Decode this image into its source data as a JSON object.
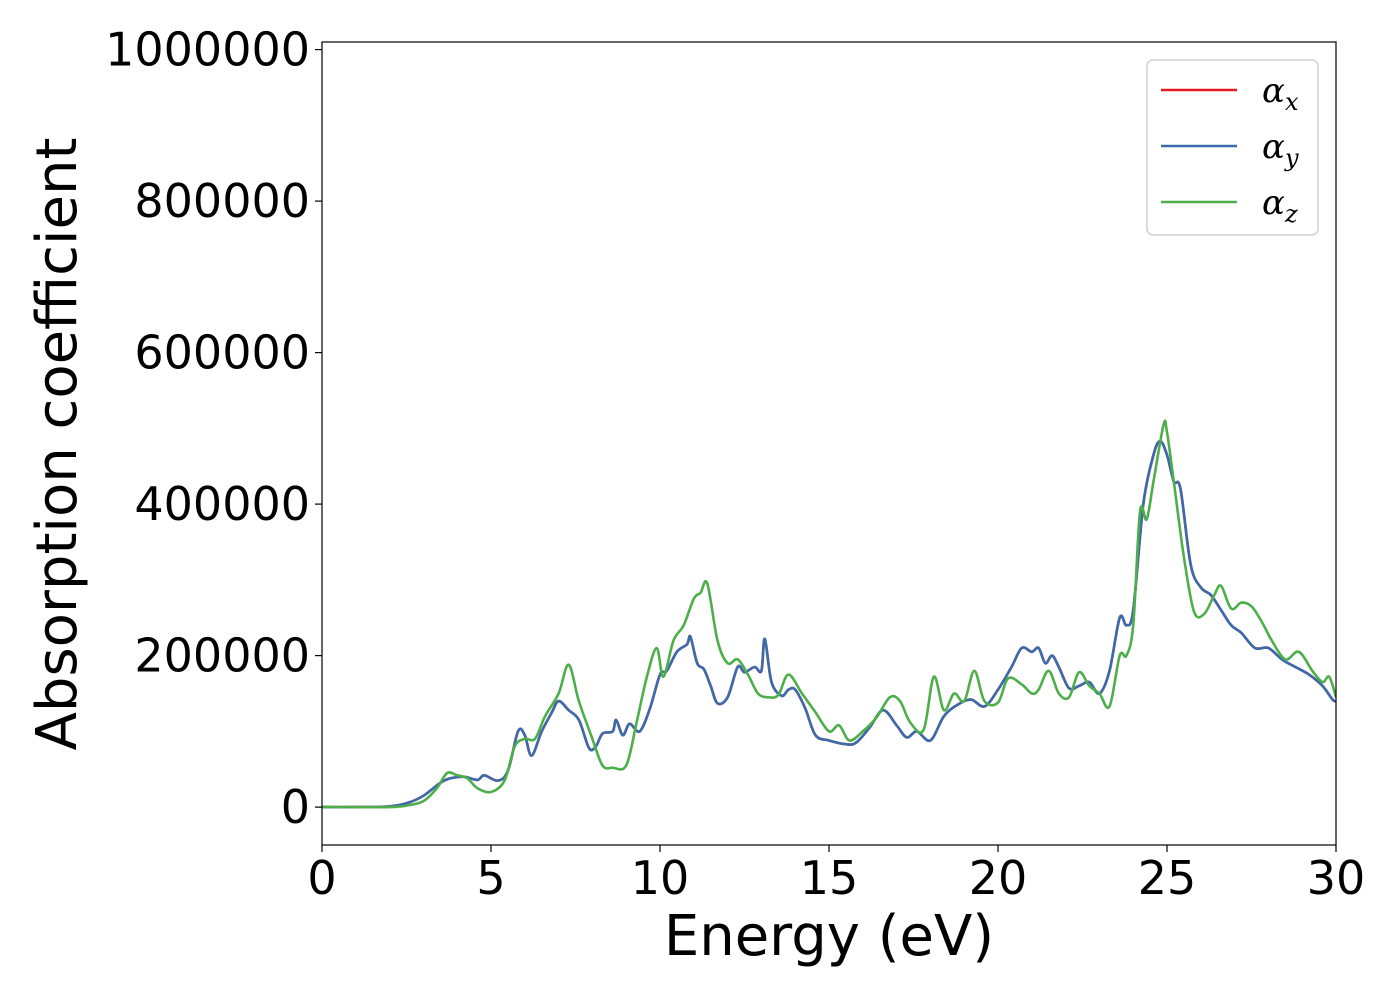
{
  "chart_data": {
    "type": "line",
    "title": "",
    "xlabel": "Energy (eV)",
    "ylabel": "Absorption coefficient",
    "xlim": [
      0,
      30
    ],
    "ylim": [
      -50000,
      1010000
    ],
    "x_ticks": [
      0,
      5,
      10,
      15,
      20,
      25,
      30
    ],
    "x_tick_labels": [
      "0",
      "5",
      "10",
      "15",
      "20",
      "25",
      "30"
    ],
    "y_ticks": [
      0,
      200000,
      400000,
      600000,
      800000,
      1000000
    ],
    "y_tick_labels": [
      "0",
      "200000",
      "400000",
      "600000",
      "800000",
      "1000000"
    ],
    "grid": false,
    "legend_position": "top-right",
    "series": [
      {
        "name": "α_x",
        "label_main": "α",
        "label_sub": "x",
        "color": "#e41a1c",
        "x": [
          0,
          1,
          2,
          2.5,
          3,
          3.5,
          3.8,
          4.2,
          4.6,
          4.8,
          5.2,
          5.5,
          5.8,
          6.0,
          6.2,
          6.5,
          6.8,
          7.0,
          7.3,
          7.6,
          7.9,
          8.1,
          8.3,
          8.6,
          8.7,
          8.9,
          9.1,
          9.4,
          9.7,
          10.0,
          10.2,
          10.5,
          10.8,
          10.9,
          11.1,
          11.3,
          11.5,
          11.7,
          12.0,
          12.3,
          12.5,
          12.8,
          13.0,
          13.1,
          13.3,
          13.6,
          13.8,
          14.0,
          14.3,
          14.6,
          15.0,
          15.5,
          15.8,
          16.2,
          16.6,
          17.0,
          17.3,
          17.6,
          18.0,
          18.4,
          18.8,
          19.2,
          19.6,
          20.0,
          20.4,
          20.7,
          21.0,
          21.2,
          21.4,
          21.6,
          21.8,
          22.1,
          22.4,
          22.7,
          23.0,
          23.3,
          23.6,
          23.8,
          24.0,
          24.3,
          24.6,
          24.8,
          25.0,
          25.2,
          25.4,
          25.7,
          26.0,
          26.3,
          26.6,
          26.9,
          27.2,
          27.6,
          28.0,
          28.4,
          28.8,
          29.2,
          29.6,
          29.9,
          30.0
        ],
        "values": [
          0,
          0,
          1000,
          5000,
          15000,
          32000,
          38000,
          40000,
          36000,
          42000,
          35000,
          48000,
          100000,
          95000,
          68000,
          100000,
          125000,
          140000,
          128000,
          115000,
          78000,
          80000,
          97000,
          100000,
          115000,
          95000,
          110000,
          100000,
          130000,
          175000,
          180000,
          205000,
          215000,
          225000,
          190000,
          182000,
          160000,
          137000,
          145000,
          185000,
          178000,
          185000,
          180000,
          222000,
          165000,
          147000,
          155000,
          155000,
          130000,
          95000,
          88000,
          83000,
          85000,
          105000,
          128000,
          108000,
          92000,
          100000,
          88000,
          120000,
          135000,
          142000,
          133000,
          155000,
          185000,
          210000,
          205000,
          210000,
          190000,
          200000,
          185000,
          157000,
          160000,
          165000,
          150000,
          180000,
          250000,
          240000,
          260000,
          400000,
          465000,
          483000,
          465000,
          430000,
          420000,
          320000,
          290000,
          280000,
          260000,
          240000,
          230000,
          210000,
          210000,
          195000,
          185000,
          175000,
          160000,
          142000,
          140000
        ]
      },
      {
        "name": "α_y",
        "label_main": "α",
        "label_sub": "y",
        "color": "#3a6cad",
        "x": [
          0,
          1,
          2,
          2.5,
          3,
          3.5,
          3.8,
          4.2,
          4.6,
          4.8,
          5.2,
          5.5,
          5.8,
          6.0,
          6.2,
          6.5,
          6.8,
          7.0,
          7.3,
          7.6,
          7.9,
          8.1,
          8.3,
          8.6,
          8.7,
          8.9,
          9.1,
          9.4,
          9.7,
          10.0,
          10.2,
          10.5,
          10.8,
          10.9,
          11.1,
          11.3,
          11.5,
          11.7,
          12.0,
          12.3,
          12.5,
          12.8,
          13.0,
          13.1,
          13.3,
          13.6,
          13.8,
          14.0,
          14.3,
          14.6,
          15.0,
          15.5,
          15.8,
          16.2,
          16.6,
          17.0,
          17.3,
          17.6,
          18.0,
          18.4,
          18.8,
          19.2,
          19.6,
          20.0,
          20.4,
          20.7,
          21.0,
          21.2,
          21.4,
          21.6,
          21.8,
          22.1,
          22.4,
          22.7,
          23.0,
          23.3,
          23.6,
          23.8,
          24.0,
          24.3,
          24.6,
          24.8,
          25.0,
          25.2,
          25.4,
          25.7,
          26.0,
          26.3,
          26.6,
          26.9,
          27.2,
          27.6,
          28.0,
          28.4,
          28.8,
          29.2,
          29.6,
          29.9,
          30.0
        ],
        "values": [
          0,
          0,
          1000,
          5000,
          15000,
          32000,
          38000,
          40000,
          36000,
          42000,
          35000,
          48000,
          100000,
          95000,
          68000,
          100000,
          125000,
          140000,
          128000,
          115000,
          78000,
          80000,
          97000,
          100000,
          115000,
          95000,
          110000,
          100000,
          130000,
          175000,
          180000,
          205000,
          215000,
          225000,
          190000,
          182000,
          160000,
          137000,
          145000,
          185000,
          178000,
          185000,
          180000,
          222000,
          165000,
          147000,
          155000,
          155000,
          130000,
          95000,
          88000,
          83000,
          85000,
          105000,
          128000,
          108000,
          92000,
          100000,
          88000,
          120000,
          135000,
          142000,
          133000,
          155000,
          185000,
          210000,
          205000,
          210000,
          190000,
          200000,
          185000,
          157000,
          160000,
          165000,
          150000,
          180000,
          250000,
          240000,
          260000,
          400000,
          465000,
          483000,
          465000,
          430000,
          420000,
          320000,
          290000,
          280000,
          260000,
          240000,
          230000,
          210000,
          210000,
          195000,
          185000,
          175000,
          160000,
          142000,
          140000
        ]
      },
      {
        "name": "α_z",
        "label_main": "α",
        "label_sub": "z",
        "color": "#4daf4a",
        "x": [
          0,
          1,
          2,
          2.5,
          3,
          3.4,
          3.7,
          4.0,
          4.3,
          4.6,
          5.0,
          5.4,
          5.7,
          6.0,
          6.3,
          6.6,
          7.0,
          7.3,
          7.6,
          8.0,
          8.3,
          8.6,
          9.0,
          9.3,
          9.6,
          9.9,
          10.1,
          10.4,
          10.7,
          11.0,
          11.2,
          11.4,
          11.7,
          12.0,
          12.3,
          12.6,
          12.9,
          13.2,
          13.5,
          13.8,
          14.2,
          14.6,
          15.0,
          15.3,
          15.6,
          16.0,
          16.4,
          16.8,
          17.1,
          17.4,
          17.8,
          18.1,
          18.4,
          18.7,
          19.0,
          19.3,
          19.6,
          20.0,
          20.3,
          20.7,
          21.0,
          21.2,
          21.5,
          21.8,
          22.1,
          22.4,
          22.7,
          23.0,
          23.3,
          23.6,
          23.8,
          24.0,
          24.2,
          24.4,
          24.6,
          24.9,
          25.0,
          25.2,
          25.5,
          25.8,
          26.1,
          26.4,
          26.6,
          26.9,
          27.2,
          27.5,
          27.8,
          28.1,
          28.5,
          28.9,
          29.3,
          29.6,
          29.8,
          30.0
        ],
        "values": [
          0,
          0,
          0,
          2000,
          8000,
          25000,
          45000,
          42000,
          38000,
          25000,
          20000,
          35000,
          80000,
          90000,
          90000,
          120000,
          150000,
          188000,
          140000,
          90000,
          55000,
          52000,
          55000,
          110000,
          170000,
          210000,
          172000,
          220000,
          240000,
          275000,
          283000,
          295000,
          220000,
          190000,
          195000,
          175000,
          150000,
          145000,
          148000,
          175000,
          150000,
          125000,
          100000,
          108000,
          88000,
          100000,
          118000,
          145000,
          140000,
          112000,
          102000,
          172000,
          128000,
          150000,
          140000,
          180000,
          140000,
          138000,
          170000,
          162000,
          150000,
          155000,
          180000,
          150000,
          145000,
          178000,
          160000,
          150000,
          133000,
          200000,
          200000,
          240000,
          390000,
          380000,
          430000,
          505000,
          495000,
          430000,
          330000,
          258000,
          255000,
          280000,
          292000,
          262000,
          270000,
          265000,
          245000,
          220000,
          195000,
          205000,
          180000,
          165000,
          172000,
          145000
        ]
      }
    ]
  }
}
